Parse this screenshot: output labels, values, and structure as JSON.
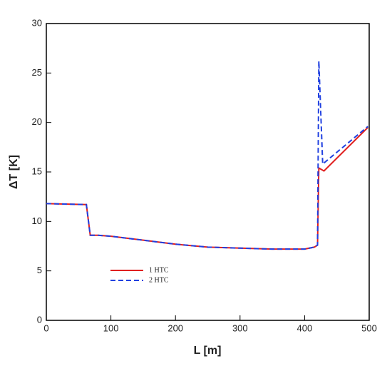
{
  "chart_data": {
    "type": "line",
    "x_label": "L [m]",
    "y_label": "ΔT [K]",
    "xlim": [
      0,
      500
    ],
    "ylim": [
      0,
      30
    ],
    "xticks": [
      0,
      100,
      200,
      300,
      400,
      500
    ],
    "yticks": [
      0,
      5,
      10,
      15,
      20,
      25,
      30
    ],
    "grid": false,
    "legend_position": "lower-left",
    "series": [
      {
        "name": "1 HTC",
        "color": "#e02020",
        "dash": false,
        "x": [
          0,
          62,
          68,
          80,
          100,
          150,
          200,
          250,
          300,
          350,
          400,
          415,
          420,
          422,
          430,
          498
        ],
        "values": [
          11.8,
          11.7,
          8.6,
          8.6,
          8.5,
          8.1,
          7.7,
          7.4,
          7.3,
          7.2,
          7.2,
          7.4,
          7.6,
          15.4,
          15.1,
          19.5
        ]
      },
      {
        "name": "2 HTC",
        "color": "#2040e0",
        "dash": true,
        "x": [
          0,
          62,
          68,
          80,
          100,
          150,
          200,
          250,
          300,
          350,
          400,
          415,
          420,
          422,
          428,
          498
        ],
        "values": [
          11.8,
          11.7,
          8.6,
          8.6,
          8.5,
          8.1,
          7.7,
          7.4,
          7.3,
          7.2,
          7.2,
          7.4,
          7.6,
          26.2,
          15.8,
          19.6
        ]
      }
    ]
  }
}
